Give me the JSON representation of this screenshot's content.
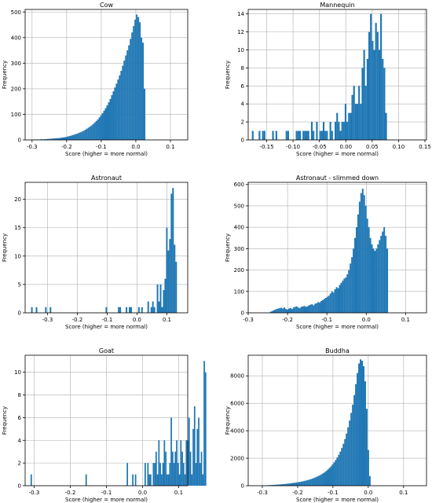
{
  "chart_data": [
    {
      "type": "bar",
      "title": "Cow",
      "xlabel": "Score (higher = more normal)",
      "ylabel": "Frequency",
      "xlim": [
        -0.32,
        0.15
      ],
      "ylim": [
        0,
        510
      ],
      "xticks": [
        -0.3,
        -0.2,
        -0.1,
        0.0,
        0.1
      ],
      "xtick_labels": [
        "-0.3",
        "-0.2",
        "-0.1",
        "0.0",
        "0.1"
      ],
      "yticks": [
        0,
        100,
        200,
        300,
        400,
        500
      ],
      "ytick_labels": [
        "0",
        "100",
        "200",
        "300",
        "400",
        "500"
      ],
      "grid": true,
      "bar_color": "#1f77b4",
      "bins": {
        "start": -0.31,
        "width": 0.0045,
        "values": [
          1,
          0,
          1,
          2,
          1,
          2,
          1,
          2,
          3,
          2,
          3,
          3,
          4,
          4,
          5,
          5,
          6,
          6,
          7,
          7,
          8,
          9,
          10,
          11,
          12,
          14,
          15,
          17,
          19,
          21,
          23,
          25,
          28,
          30,
          33,
          36,
          40,
          44,
          48,
          52,
          57,
          62,
          68,
          74,
          80,
          88,
          96,
          104,
          114,
          124,
          135,
          147,
          160,
          175,
          190,
          205,
          220,
          236,
          252,
          270,
          290,
          310,
          330,
          350,
          370,
          395,
          420,
          445,
          470,
          490,
          480,
          460,
          400,
          380,
          200
        ]
      }
    },
    {
      "type": "bar",
      "title": "Mannequin",
      "xlabel": "Score (higher = more normal)",
      "ylabel": "Frequency",
      "xlim": [
        -0.185,
        0.153
      ],
      "ylim": [
        0,
        14.5
      ],
      "xticks": [
        -0.15,
        -0.1,
        -0.05,
        0.0,
        0.05,
        0.1,
        0.15
      ],
      "xtick_labels": [
        "-0.15",
        "-0.10",
        "-0.05",
        "0.00",
        "0.05",
        "0.10",
        "0.15"
      ],
      "yticks": [
        0,
        2,
        4,
        6,
        8,
        10,
        12,
        14
      ],
      "ytick_labels": [
        "0",
        "2",
        "4",
        "6",
        "8",
        "10",
        "12",
        "14"
      ],
      "grid": true,
      "bar_color": "#1f77b4",
      "bins": {
        "start": -0.178,
        "width": 0.0032,
        "values": [
          1,
          0,
          0,
          0,
          1,
          0,
          1,
          1,
          0,
          0,
          0,
          0,
          1,
          0,
          1,
          0,
          0,
          0,
          0,
          0,
          1,
          1,
          0,
          0,
          0,
          0,
          1,
          1,
          1,
          0,
          1,
          1,
          1,
          1,
          0,
          2,
          1,
          0,
          2,
          0,
          1,
          1,
          2,
          1,
          1,
          0,
          2,
          1,
          0,
          2,
          3,
          2,
          1,
          2,
          2,
          4,
          2,
          3,
          3,
          5,
          6,
          4,
          4,
          6,
          4,
          8,
          10,
          6,
          9,
          12,
          14,
          11,
          10,
          13,
          12,
          10,
          14,
          9,
          8,
          3
        ]
      }
    },
    {
      "type": "bar",
      "title": "Astronaut",
      "xlabel": "Score (higher = more normal)",
      "ylabel": "Frequency",
      "xlim": [
        -0.375,
        0.17
      ],
      "ylim": [
        0,
        23
      ],
      "xticks": [
        -0.3,
        -0.2,
        -0.1,
        0.0,
        0.1
      ],
      "xtick_labels": [
        "-0.3",
        "-0.2",
        "-0.1",
        "0.0",
        "0.1"
      ],
      "yticks": [
        0,
        5,
        10,
        15,
        20
      ],
      "ytick_labels": [
        "0",
        "5",
        "10",
        "15",
        "20"
      ],
      "grid": true,
      "bar_color": "#1f77b4",
      "bins": {
        "start": -0.355,
        "width": 0.0052,
        "values": [
          1,
          0,
          0,
          1,
          0,
          0,
          0,
          0,
          0,
          1,
          0,
          0,
          1,
          0,
          0,
          0,
          0,
          0,
          0,
          0,
          0,
          0,
          0,
          0,
          0,
          0,
          0,
          0,
          0,
          0,
          0,
          0,
          0,
          0,
          0,
          0,
          0,
          0,
          0,
          0,
          0,
          0,
          0,
          0,
          0,
          0,
          0,
          0,
          1,
          0,
          0,
          0,
          0,
          0,
          0,
          0,
          1,
          1,
          0,
          0,
          0,
          1,
          0,
          1,
          1,
          0,
          0,
          0,
          0,
          1,
          0,
          1,
          0,
          0,
          0,
          2,
          0,
          1,
          2,
          1,
          0,
          5,
          2,
          5,
          1,
          4,
          6,
          15,
          11,
          13,
          21,
          22,
          12,
          9
        ]
      }
    },
    {
      "type": "bar",
      "title": "Astronaut - slimmed down",
      "xlabel": "Score (higher = more normal)",
      "ylabel": "Frequency",
      "xlim": [
        -0.3,
        0.153
      ],
      "ylim": [
        0,
        610
      ],
      "xticks": [
        -0.3,
        -0.2,
        -0.1,
        0.0,
        0.1
      ],
      "xtick_labels": [
        "-0.3",
        "-0.2",
        "-0.1",
        "0.0",
        "0.1"
      ],
      "yticks": [
        0,
        100,
        200,
        300,
        400,
        500,
        600
      ],
      "ytick_labels": [
        "0",
        "100",
        "200",
        "300",
        "400",
        "500",
        "600"
      ],
      "grid": true,
      "bar_color": "#1f77b4",
      "bins": {
        "start": -0.245,
        "width": 0.0039,
        "values": [
          5,
          8,
          12,
          15,
          18,
          20,
          22,
          24,
          20,
          25,
          18,
          15,
          20,
          22,
          18,
          25,
          28,
          30,
          25,
          22,
          28,
          30,
          32,
          28,
          30,
          35,
          38,
          40,
          35,
          42,
          45,
          50,
          48,
          55,
          60,
          65,
          70,
          75,
          80,
          90,
          100,
          95,
          110,
          120,
          115,
          130,
          140,
          150,
          160,
          165,
          180,
          200,
          230,
          260,
          300,
          350,
          400,
          460,
          520,
          560,
          580,
          550,
          500,
          440,
          400,
          350,
          320,
          300,
          290,
          300,
          320,
          340,
          360,
          380,
          400,
          360,
          300
        ]
      }
    },
    {
      "type": "bar",
      "title": "Goat",
      "xlabel": "Score (higher = more normal)",
      "ylabel": "Frequency",
      "xlim": [
        -0.325,
        0.125
      ],
      "ylim": [
        0,
        11.5
      ],
      "xticks": [
        -0.3,
        -0.2,
        -0.1,
        0.0,
        0.1
      ],
      "xtick_labels": [
        "-0.3",
        "-0.2",
        "-0.1",
        "0.0",
        "0.1"
      ],
      "yticks": [
        0,
        2,
        4,
        6,
        8,
        10
      ],
      "ytick_labels": [
        "0",
        "2",
        "4",
        "6",
        "8",
        "10"
      ],
      "grid": true,
      "bar_color": "#1f77b4",
      "bins": {
        "start": -0.31,
        "width": 0.0038,
        "values": [
          1,
          0,
          0,
          0,
          0,
          0,
          0,
          0,
          0,
          0,
          0,
          0,
          0,
          0,
          0,
          0,
          0,
          0,
          0,
          0,
          0,
          0,
          0,
          0,
          0,
          0,
          0,
          0,
          0,
          0,
          0,
          0,
          0,
          0,
          0,
          0,
          0,
          0,
          0,
          0,
          1,
          0,
          0,
          0,
          0,
          0,
          0,
          0,
          0,
          0,
          0,
          0,
          0,
          0,
          0,
          0,
          0,
          0,
          0,
          0,
          0,
          0,
          0,
          0,
          0,
          0,
          0,
          0,
          0,
          0,
          2,
          0,
          0,
          0,
          1,
          0,
          1,
          0,
          0,
          0,
          0,
          0,
          0,
          2,
          0,
          2,
          1,
          1,
          0,
          2,
          2,
          3,
          1,
          4,
          2,
          1,
          2,
          4,
          3,
          1,
          1,
          2,
          6,
          3,
          2,
          3,
          4,
          2,
          1,
          4,
          3,
          2,
          1,
          4,
          4,
          6,
          3,
          1,
          5,
          7,
          2,
          5,
          6,
          2,
          3,
          1,
          11,
          10
        ]
      }
    },
    {
      "type": "bar",
      "title": "Buddha",
      "xlabel": "Score (higher = more normal)",
      "ylabel": "Frequency",
      "xlim": [
        -0.34,
        0.165
      ],
      "ylim": [
        0,
        9500
      ],
      "xticks": [
        -0.3,
        -0.2,
        -0.1,
        0.0,
        0.1
      ],
      "xtick_labels": [
        "-0.3",
        "-0.2",
        "-0.1",
        "0.0",
        "0.1"
      ],
      "yticks": [
        0,
        2000,
        4000,
        6000,
        8000
      ],
      "ytick_labels": [
        "0",
        "2000",
        "4000",
        "6000",
        "8000"
      ],
      "grid": true,
      "bar_color": "#1f77b4",
      "bins": {
        "start": -0.31,
        "width": 0.0044,
        "values": [
          10,
          15,
          20,
          25,
          30,
          35,
          40,
          48,
          55,
          62,
          70,
          78,
          86,
          95,
          105,
          115,
          125,
          135,
          148,
          160,
          175,
          190,
          205,
          220,
          240,
          260,
          280,
          300,
          325,
          350,
          380,
          410,
          445,
          480,
          520,
          565,
          610,
          660,
          715,
          775,
          840,
          910,
          990,
          1080,
          1180,
          1290,
          1410,
          1550,
          1700,
          1870,
          2050,
          2250,
          2480,
          2750,
          3050,
          3400,
          3800,
          4250,
          4750,
          5300,
          5900,
          6600,
          7400,
          8200,
          8900,
          9200,
          9100,
          8700,
          7600,
          5600,
          2600,
          700
        ]
      }
    }
  ]
}
